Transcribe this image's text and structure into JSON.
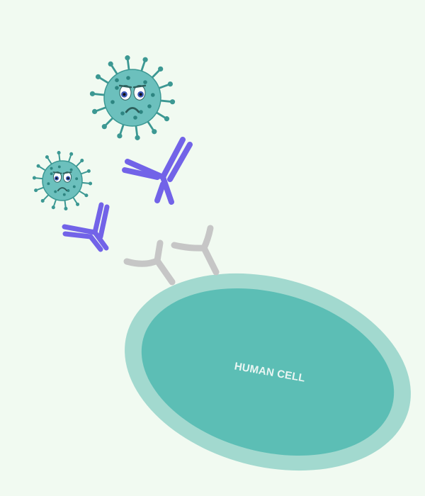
{
  "cell": {
    "label": "HUMAN CELL",
    "membrane_color": "#a2d9cf",
    "body_color": "#5cbeb5",
    "label_color": "#ebf6f3"
  },
  "receptor_color": "#c6c6c6",
  "antibody_color": "#7263e8",
  "virus": {
    "body_color": "#6cc0bd",
    "spike_color": "#3c9893",
    "spot_color": "#2d8581",
    "face": "sad"
  },
  "background": "#f1faf1"
}
